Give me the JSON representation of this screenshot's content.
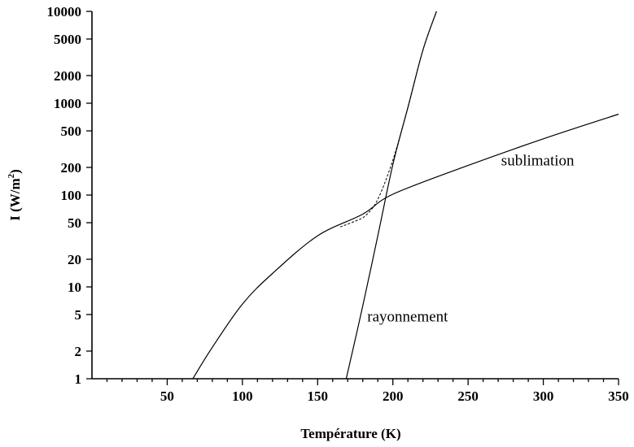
{
  "chart_data": {
    "type": "line",
    "title": "",
    "xlabel": "Température (K)",
    "ylabel": "I (W/m²)",
    "ylabel_parts": {
      "base": "I (W/m",
      "sup": "2",
      "tail": ")"
    },
    "xlim": [
      0,
      350
    ],
    "ylim": [
      1,
      10000
    ],
    "y_scale": "log",
    "grid": false,
    "x_ticks": [
      50,
      100,
      150,
      200,
      250,
      300,
      350
    ],
    "x_minor_step": 10,
    "y_ticks": [
      1,
      2,
      5,
      10,
      20,
      50,
      100,
      200,
      500,
      1000,
      2000,
      5000,
      10000
    ],
    "y_tick_labels": [
      "1",
      "2",
      "5",
      "10",
      "20",
      "50",
      "100",
      "200",
      "500",
      "1000",
      "2000",
      "5000",
      "10000"
    ],
    "series": [
      {
        "name": "sublimation",
        "style": "solid",
        "x": [
          67,
          80,
          100,
          120,
          150,
          180,
          200,
          250,
          300,
          350
        ],
        "y": [
          1,
          2.2,
          6.5,
          14,
          36,
          62,
          102,
          210,
          410,
          760
        ]
      },
      {
        "name": "rayonnement",
        "style": "solid",
        "x": [
          169,
          180,
          190,
          200,
          210,
          220,
          229
        ],
        "y": [
          1,
          6.2,
          36,
          215,
          900,
          3800,
          10000
        ]
      },
      {
        "name": "",
        "style": "dashed",
        "x": [
          165,
          175,
          182,
          190,
          200,
          210,
          220,
          229
        ],
        "y": [
          45,
          52,
          60,
          90,
          240,
          900,
          3800,
          10000
        ]
      }
    ],
    "annotations": [
      {
        "text": "sublimation",
        "x": 272,
        "y": 210
      },
      {
        "text": "rayonnement",
        "x": 183,
        "y": 4.2
      }
    ]
  }
}
